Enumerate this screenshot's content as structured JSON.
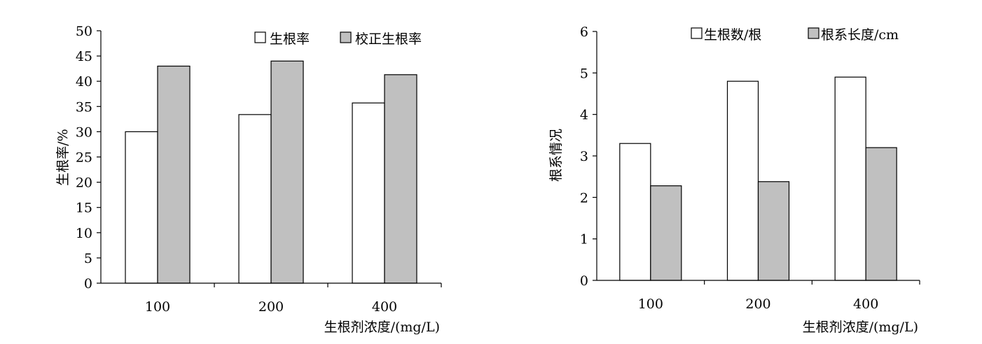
{
  "chart_data": [
    {
      "type": "bar",
      "categories": [
        "100",
        "200",
        "400"
      ],
      "series": [
        {
          "name": "生根率",
          "values": [
            30.0,
            33.4,
            35.7
          ]
        },
        {
          "name": "校正生根率",
          "values": [
            43.0,
            44.0,
            41.3
          ]
        }
      ],
      "xlabel": "生根剂浓度/(mg/L)",
      "ylabel": "生根率/%",
      "ylim": [
        0,
        50
      ],
      "yticks": [
        "0",
        "5",
        "10",
        "15",
        "20",
        "25",
        "30",
        "35",
        "40",
        "45",
        "50"
      ],
      "grid": false,
      "legend_position": "top-right"
    },
    {
      "type": "bar",
      "categories": [
        "100",
        "200",
        "400"
      ],
      "series": [
        {
          "name": "生根数/根",
          "values": [
            3.3,
            4.8,
            4.9
          ]
        },
        {
          "name": "根系长度/cm",
          "values": [
            2.28,
            2.38,
            3.2
          ]
        }
      ],
      "xlabel": "生根剂浓度/(mg/L)",
      "ylabel": "根系情况",
      "ylim": [
        0,
        6
      ],
      "yticks": [
        "0",
        "1",
        "2",
        "3",
        "4",
        "5",
        "6"
      ],
      "grid": false,
      "legend_position": "top-right"
    }
  ],
  "colors": {
    "series_1": "#ffffff",
    "series_2": "#c0c0c0",
    "stroke": "#000000"
  }
}
